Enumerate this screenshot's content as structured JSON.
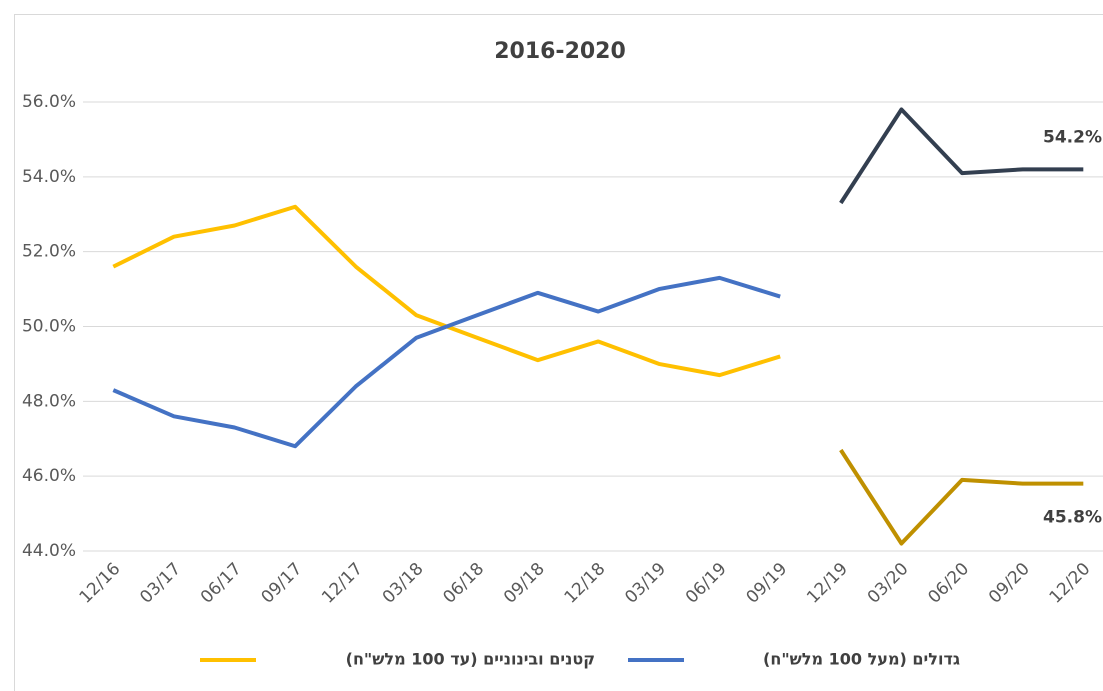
{
  "chart_data": {
    "type": "line",
    "title": "2016-2020",
    "categories": [
      "12/16",
      "03/17",
      "06/17",
      "09/17",
      "12/17",
      "03/18",
      "06/18",
      "09/18",
      "12/18",
      "03/19",
      "06/19",
      "09/19",
      "12/19",
      "03/20",
      "06/20",
      "09/20",
      "12/20"
    ],
    "series": [
      {
        "name": "קטנים ובינוניים (עד 100 מלש\"ח)",
        "color": "#ffc000",
        "values": [
          51.6,
          52.4,
          52.7,
          53.2,
          51.6,
          50.3,
          49.7,
          49.1,
          49.6,
          49.0,
          48.7,
          49.2,
          null,
          null,
          null,
          null,
          null
        ]
      },
      {
        "name": "גדולים (מעל 100 מלש\"ח)",
        "color": "#4472c4",
        "values": [
          48.3,
          47.6,
          47.3,
          46.8,
          48.4,
          49.7,
          50.3,
          50.9,
          50.4,
          51.0,
          51.3,
          50.8,
          null,
          null,
          null,
          null,
          null
        ]
      },
      {
        "color": "#bf9000",
        "values": [
          null,
          null,
          null,
          null,
          null,
          null,
          null,
          null,
          null,
          null,
          null,
          null,
          46.7,
          44.2,
          45.9,
          45.8,
          45.8
        ],
        "value_labels": [
          null,
          null,
          null,
          null,
          null,
          null,
          null,
          null,
          null,
          null,
          null,
          null,
          null,
          null,
          null,
          null,
          "45.8%"
        ]
      },
      {
        "color": "#333f50",
        "values": [
          null,
          null,
          null,
          null,
          null,
          null,
          null,
          null,
          null,
          null,
          null,
          null,
          53.3,
          55.8,
          54.1,
          54.2,
          54.2
        ],
        "value_labels": [
          null,
          null,
          null,
          null,
          null,
          null,
          null,
          null,
          null,
          null,
          null,
          null,
          null,
          null,
          null,
          null,
          "54.2%"
        ]
      }
    ],
    "ylim": [
      44,
      56
    ],
    "yticks": [
      {
        "value": 44,
        "label": "44.0%"
      },
      {
        "value": 46,
        "label": "46.0%"
      },
      {
        "value": 48,
        "label": "48.0%"
      },
      {
        "value": 50,
        "label": "50.0%"
      },
      {
        "value": 52,
        "label": "52.0%"
      },
      {
        "value": 54,
        "label": "54.0%"
      },
      {
        "value": 56,
        "label": "56.0%"
      }
    ],
    "grid": true
  }
}
